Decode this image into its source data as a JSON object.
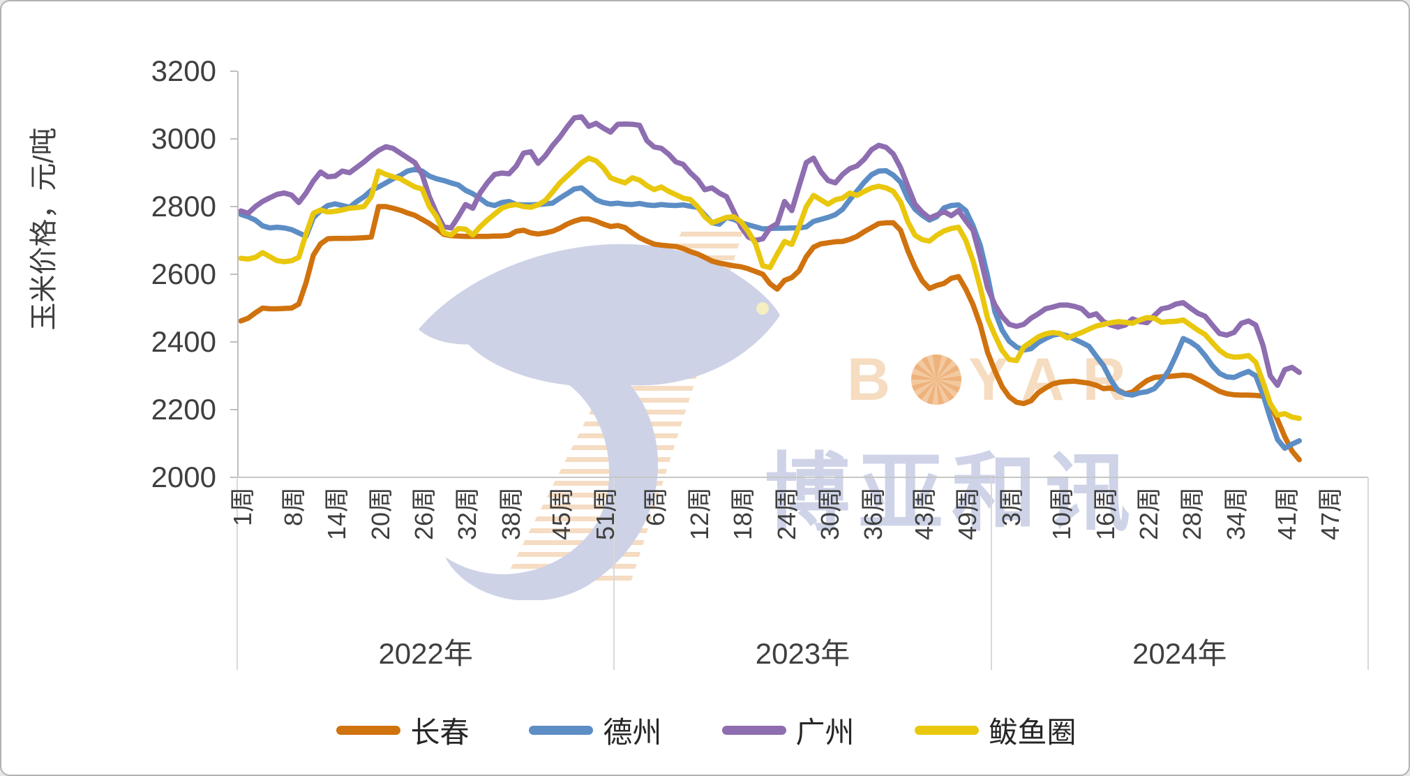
{
  "y_axis": {
    "title": "玉米价格，元/吨",
    "tick_labels": [
      "3200",
      "3000",
      "2800",
      "2600",
      "2400",
      "2200",
      "2000"
    ]
  },
  "x_axis": {
    "year_groups": [
      {
        "label": "2022年",
        "week_ticks": [
          "1周",
          "8周",
          "14周",
          "20周",
          "26周",
          "32周",
          "38周",
          "45周",
          "51周"
        ]
      },
      {
        "label": "2023年",
        "week_ticks": [
          "6周",
          "12周",
          "18周",
          "24周",
          "30周",
          "36周",
          "43周",
          "49周"
        ]
      },
      {
        "label": "2024年",
        "week_ticks": [
          "3周",
          "10周",
          "16周",
          "22周",
          "28周",
          "34周",
          "41周",
          "47周"
        ]
      }
    ]
  },
  "legend": [
    {
      "label": "长春",
      "color": "#D0720E"
    },
    {
      "label": "德州",
      "color": "#5C8DC5"
    },
    {
      "label": "广州",
      "color": "#8E6DB0"
    },
    {
      "label": "鲅鱼圈",
      "color": "#E9C70D"
    }
  ],
  "watermark": {
    "latin_prefix": "B",
    "latin_suffix": "YAR",
    "cn": "博亚和讯"
  },
  "colors": {
    "axis_line": "#bfbfbf",
    "separator": "#d9d9d9",
    "text": "#3f3f3f",
    "wm_lavender": "#cdd2e6",
    "wm_orange": "#f5dcc2"
  },
  "chart_data": {
    "type": "line",
    "title": "",
    "xlabel": "",
    "ylabel": "玉米价格，元/吨",
    "ylim": [
      2000,
      3200
    ],
    "y_ticks": [
      3200,
      3000,
      2800,
      2600,
      2400,
      2200,
      2000
    ],
    "x_unit": "周 (week), grouped by year 2022/2023/2024; 52 week slots per year, 2024 data ends ~week 43",
    "grid": false,
    "legend_position": "bottom",
    "series": [
      {
        "name": "长春",
        "color": "#D0720E",
        "values_2022": [
          2462,
          2470,
          2486,
          2500,
          2498,
          2498,
          2499,
          2500,
          2512,
          2575,
          2656,
          2690,
          2705,
          2706,
          2706,
          2706,
          2707,
          2708,
          2710,
          2800,
          2800,
          2795,
          2789,
          2781,
          2774,
          2762,
          2750,
          2735,
          2718,
          2714,
          2713,
          2712,
          2712,
          2712,
          2712,
          2713,
          2713,
          2715,
          2727,
          2730,
          2722,
          2719,
          2722,
          2727,
          2736,
          2748,
          2757,
          2763,
          2763,
          2757,
          2748,
          2741
        ],
        "values_2023": [
          2744,
          2738,
          2722,
          2708,
          2698,
          2689,
          2686,
          2684,
          2682,
          2676,
          2667,
          2660,
          2650,
          2639,
          2633,
          2629,
          2625,
          2622,
          2616,
          2608,
          2600,
          2572,
          2556,
          2582,
          2590,
          2610,
          2652,
          2680,
          2690,
          2693,
          2696,
          2697,
          2703,
          2712,
          2726,
          2738,
          2750,
          2752,
          2752,
          2730,
          2670,
          2620,
          2580,
          2558,
          2567,
          2573,
          2588,
          2593,
          2556,
          2510,
          2450,
          2370
        ],
        "values_2024": [
          2315,
          2268,
          2238,
          2222,
          2218,
          2226,
          2250,
          2264,
          2276,
          2281,
          2283,
          2284,
          2281,
          2278,
          2272,
          2262,
          2264,
          2258,
          2247,
          2252,
          2270,
          2286,
          2295,
          2297,
          2298,
          2300,
          2302,
          2300,
          2289,
          2278,
          2266,
          2254,
          2247,
          2244,
          2243,
          2243,
          2242,
          2240,
          2215,
          2170,
          2120,
          2078,
          2052
        ]
      },
      {
        "name": "德州",
        "color": "#5C8DC5",
        "values_2022": [
          2777,
          2770,
          2760,
          2743,
          2737,
          2739,
          2737,
          2732,
          2722,
          2712,
          2767,
          2788,
          2803,
          2808,
          2803,
          2798,
          2815,
          2829,
          2848,
          2858,
          2870,
          2882,
          2892,
          2905,
          2910,
          2905,
          2890,
          2882,
          2877,
          2870,
          2864,
          2848,
          2838,
          2824,
          2808,
          2803,
          2812,
          2815,
          2806,
          2805,
          2805,
          2806,
          2808,
          2810,
          2825,
          2838,
          2852,
          2855,
          2838,
          2820,
          2812,
          2808
        ],
        "values_2023": [
          2810,
          2807,
          2806,
          2809,
          2805,
          2803,
          2806,
          2804,
          2803,
          2805,
          2801,
          2798,
          2775,
          2752,
          2748,
          2768,
          2762,
          2752,
          2746,
          2740,
          2734,
          2735,
          2736,
          2736,
          2737,
          2737,
          2740,
          2756,
          2762,
          2768,
          2776,
          2792,
          2820,
          2846,
          2872,
          2894,
          2905,
          2906,
          2893,
          2872,
          2824,
          2792,
          2774,
          2760,
          2770,
          2796,
          2803,
          2805,
          2788,
          2743,
          2685,
          2595
        ],
        "values_2024": [
          2490,
          2435,
          2402,
          2385,
          2376,
          2380,
          2398,
          2410,
          2420,
          2424,
          2418,
          2408,
          2398,
          2387,
          2358,
          2330,
          2288,
          2256,
          2246,
          2243,
          2250,
          2253,
          2262,
          2285,
          2315,
          2360,
          2410,
          2400,
          2385,
          2360,
          2330,
          2307,
          2297,
          2295,
          2305,
          2313,
          2300,
          2245,
          2175,
          2112,
          2086,
          2098,
          2108
        ]
      },
      {
        "name": "广州",
        "color": "#8E6DB0",
        "values_2022": [
          2787,
          2780,
          2800,
          2815,
          2826,
          2836,
          2840,
          2834,
          2812,
          2840,
          2875,
          2902,
          2888,
          2890,
          2905,
          2900,
          2916,
          2932,
          2950,
          2966,
          2977,
          2972,
          2958,
          2944,
          2930,
          2895,
          2829,
          2780,
          2740,
          2737,
          2770,
          2806,
          2795,
          2840,
          2870,
          2895,
          2899,
          2897,
          2920,
          2958,
          2962,
          2928,
          2950,
          2980,
          3005,
          3035,
          3062,
          3065,
          3037,
          3046,
          3032,
          3020
        ],
        "values_2023": [
          3043,
          3044,
          3043,
          3040,
          2995,
          2976,
          2972,
          2955,
          2932,
          2925,
          2900,
          2880,
          2850,
          2855,
          2840,
          2829,
          2785,
          2740,
          2710,
          2700,
          2705,
          2737,
          2750,
          2815,
          2788,
          2860,
          2930,
          2943,
          2903,
          2877,
          2870,
          2895,
          2912,
          2920,
          2940,
          2968,
          2981,
          2975,
          2955,
          2915,
          2860,
          2807,
          2783,
          2766,
          2775,
          2785,
          2773,
          2788,
          2758,
          2730,
          2650,
          2560
        ],
        "values_2024": [
          2510,
          2475,
          2452,
          2446,
          2452,
          2470,
          2483,
          2498,
          2503,
          2509,
          2509,
          2505,
          2498,
          2477,
          2483,
          2460,
          2450,
          2444,
          2450,
          2468,
          2460,
          2457,
          2478,
          2498,
          2502,
          2512,
          2516,
          2500,
          2485,
          2476,
          2450,
          2425,
          2420,
          2428,
          2455,
          2462,
          2450,
          2390,
          2300,
          2272,
          2318,
          2325,
          2310
        ]
      },
      {
        "name": "鲅鱼圈",
        "color": "#E9C70D",
        "values_2022": [
          2647,
          2645,
          2650,
          2664,
          2652,
          2640,
          2637,
          2640,
          2650,
          2719,
          2780,
          2790,
          2784,
          2786,
          2790,
          2795,
          2797,
          2800,
          2830,
          2905,
          2895,
          2888,
          2882,
          2870,
          2858,
          2852,
          2800,
          2770,
          2722,
          2716,
          2735,
          2733,
          2716,
          2740,
          2760,
          2778,
          2795,
          2803,
          2806,
          2800,
          2798,
          2805,
          2818,
          2843,
          2870,
          2890,
          2910,
          2930,
          2943,
          2935,
          2915,
          2885
        ],
        "values_2023": [
          2877,
          2870,
          2885,
          2878,
          2862,
          2850,
          2858,
          2845,
          2835,
          2825,
          2821,
          2800,
          2770,
          2752,
          2760,
          2768,
          2770,
          2755,
          2726,
          2690,
          2625,
          2620,
          2660,
          2697,
          2688,
          2740,
          2800,
          2833,
          2820,
          2807,
          2820,
          2825,
          2840,
          2833,
          2845,
          2855,
          2860,
          2855,
          2845,
          2814,
          2755,
          2715,
          2702,
          2698,
          2715,
          2728,
          2735,
          2739,
          2700,
          2640,
          2560,
          2470
        ],
        "values_2024": [
          2420,
          2375,
          2348,
          2345,
          2385,
          2400,
          2415,
          2424,
          2428,
          2425,
          2412,
          2420,
          2428,
          2438,
          2447,
          2452,
          2457,
          2460,
          2458,
          2455,
          2465,
          2472,
          2470,
          2458,
          2460,
          2461,
          2465,
          2450,
          2435,
          2422,
          2398,
          2375,
          2360,
          2355,
          2356,
          2360,
          2340,
          2282,
          2218,
          2184,
          2188,
          2178,
          2174
        ]
      }
    ]
  }
}
